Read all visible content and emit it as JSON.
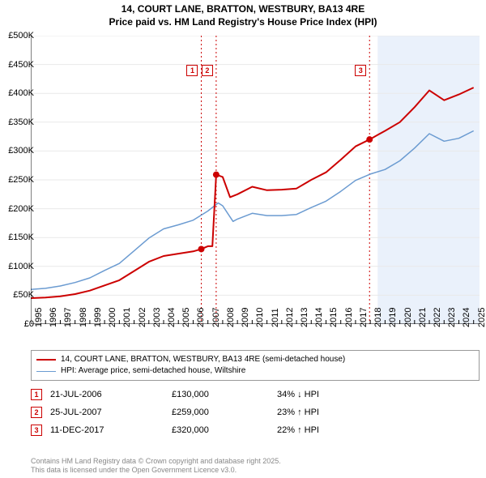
{
  "title_line1": "14, COURT LANE, BRATTON, WESTBURY, BA13 4RE",
  "title_line2": "Price paid vs. HM Land Registry's House Price Index (HPI)",
  "chart": {
    "type": "line",
    "background_color": "#ffffff",
    "shade_color": "#eaf1fb",
    "shade_from_year": 2018.5,
    "grid_color": "#e9e9e9",
    "axis_color": "#000000",
    "xlim": [
      1995,
      2025.4
    ],
    "ylim": [
      0,
      500000
    ],
    "ytick_step": 50000,
    "ytick_labels": [
      "£0",
      "£50K",
      "£100K",
      "£150K",
      "£200K",
      "£250K",
      "£300K",
      "£350K",
      "£400K",
      "£450K",
      "£500K"
    ],
    "xticks": [
      1995,
      1996,
      1997,
      1998,
      1999,
      2000,
      2001,
      2002,
      2003,
      2004,
      2005,
      2006,
      2007,
      2008,
      2009,
      2010,
      2011,
      2012,
      2013,
      2014,
      2015,
      2016,
      2017,
      2018,
      2019,
      2020,
      2021,
      2022,
      2023,
      2024,
      2025
    ],
    "series": [
      {
        "name": "property",
        "label": "14, COURT LANE, BRATTON, WESTBURY, BA13 4RE (semi-detached house)",
        "color": "#cc0000",
        "line_width": 2,
        "points": [
          [
            1995,
            45000
          ],
          [
            1996,
            46000
          ],
          [
            1997,
            48000
          ],
          [
            1998,
            52000
          ],
          [
            1999,
            58000
          ],
          [
            2000,
            67000
          ],
          [
            2001,
            76000
          ],
          [
            2002,
            92000
          ],
          [
            2003,
            108000
          ],
          [
            2004,
            118000
          ],
          [
            2005,
            122000
          ],
          [
            2006,
            126000
          ],
          [
            2006.55,
            130000
          ],
          [
            2007,
            135000
          ],
          [
            2007.3,
            135000
          ],
          [
            2007.56,
            259000
          ],
          [
            2008,
            255000
          ],
          [
            2008.5,
            220000
          ],
          [
            2009,
            225000
          ],
          [
            2010,
            238000
          ],
          [
            2011,
            232000
          ],
          [
            2012,
            233000
          ],
          [
            2013,
            235000
          ],
          [
            2014,
            250000
          ],
          [
            2015,
            263000
          ],
          [
            2016,
            285000
          ],
          [
            2017,
            308000
          ],
          [
            2017.95,
            320000
          ],
          [
            2018.5,
            328000
          ],
          [
            2019,
            335000
          ],
          [
            2020,
            350000
          ],
          [
            2021,
            376000
          ],
          [
            2022,
            405000
          ],
          [
            2023,
            388000
          ],
          [
            2024,
            398000
          ],
          [
            2025,
            410000
          ]
        ]
      },
      {
        "name": "hpi",
        "label": "HPI: Average price, semi-detached house, Wiltshire",
        "color": "#6b9bd1",
        "line_width": 1.5,
        "points": [
          [
            1995,
            60000
          ],
          [
            1996,
            62000
          ],
          [
            1997,
            66000
          ],
          [
            1998,
            72000
          ],
          [
            1999,
            80000
          ],
          [
            2000,
            93000
          ],
          [
            2001,
            105000
          ],
          [
            2002,
            127000
          ],
          [
            2003,
            149000
          ],
          [
            2004,
            165000
          ],
          [
            2005,
            172000
          ],
          [
            2006,
            180000
          ],
          [
            2007,
            196000
          ],
          [
            2007.7,
            210000
          ],
          [
            2008,
            205000
          ],
          [
            2008.7,
            178000
          ],
          [
            2009,
            182000
          ],
          [
            2010,
            192000
          ],
          [
            2011,
            188000
          ],
          [
            2012,
            188000
          ],
          [
            2013,
            190000
          ],
          [
            2014,
            202000
          ],
          [
            2015,
            213000
          ],
          [
            2016,
            230000
          ],
          [
            2017,
            249000
          ],
          [
            2018,
            260000
          ],
          [
            2019,
            268000
          ],
          [
            2020,
            283000
          ],
          [
            2021,
            305000
          ],
          [
            2022,
            330000
          ],
          [
            2023,
            317000
          ],
          [
            2024,
            322000
          ],
          [
            2025,
            335000
          ]
        ]
      }
    ],
    "event_line_color": "#cc0000",
    "event_marker_border": "#cc0000",
    "event_marker_text_color": "#cc0000",
    "events": [
      {
        "n": "1",
        "year": 2006.55,
        "price": 130000
      },
      {
        "n": "2",
        "year": 2007.56,
        "price": 259000
      },
      {
        "n": "3",
        "year": 2017.95,
        "price": 320000
      }
    ]
  },
  "legend": {
    "items": [
      {
        "color": "#cc0000",
        "width": 2,
        "label": "14, COURT LANE, BRATTON, WESTBURY, BA13 4RE (semi-detached house)"
      },
      {
        "color": "#6b9bd1",
        "width": 1.5,
        "label": "HPI: Average price, semi-detached house, Wiltshire"
      }
    ]
  },
  "sales": [
    {
      "n": "1",
      "date": "21-JUL-2006",
      "price": "£130,000",
      "diff": "34% ↓ HPI"
    },
    {
      "n": "2",
      "date": "25-JUL-2007",
      "price": "£259,000",
      "diff": "23% ↑ HPI"
    },
    {
      "n": "3",
      "date": "11-DEC-2017",
      "price": "£320,000",
      "diff": "22% ↑ HPI"
    }
  ],
  "marker_border_color": "#cc0000",
  "marker_text_color": "#cc0000",
  "footer_line1": "Contains HM Land Registry data © Crown copyright and database right 2025.",
  "footer_line2": "This data is licensed under the Open Government Licence v3.0."
}
